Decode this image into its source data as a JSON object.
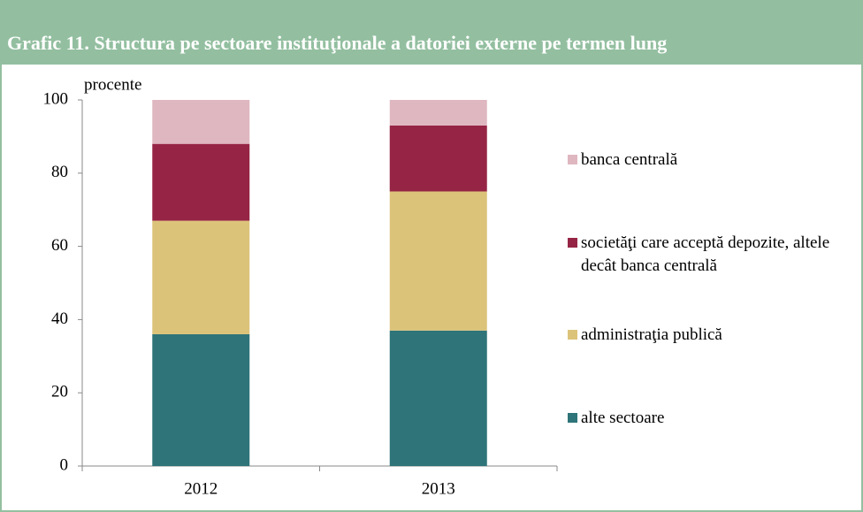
{
  "chart_data": {
    "type": "stacked_bar",
    "title": "Grafic 11. Structura pe sectoare instituţionale a datoriei externe pe termen lung",
    "y_label": "procente",
    "categories": [
      "2012",
      "2013"
    ],
    "series": [
      {
        "name": "alte sectoare",
        "color": "#2e7479",
        "values": [
          36,
          37
        ]
      },
      {
        "name": "administraţia publică",
        "color": "#dcc37a",
        "values": [
          31,
          38
        ]
      },
      {
        "name": "societăţi care acceptă depozite, altele decât banca centrală",
        "color": "#962545",
        "values": [
          21,
          18
        ]
      },
      {
        "name": "banca centrală",
        "color": "#dfb7c1",
        "values": [
          12,
          7
        ]
      }
    ],
    "ylim": [
      0,
      100
    ],
    "yticks": [
      0,
      20,
      40,
      60,
      80,
      100
    ],
    "legend": "right"
  }
}
